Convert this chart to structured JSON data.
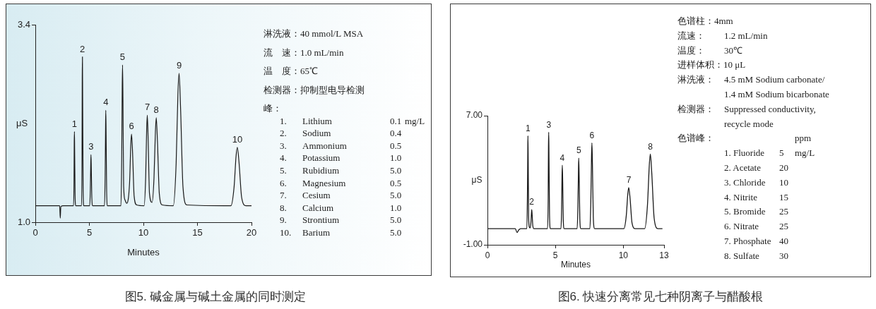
{
  "chart_data": [
    {
      "type": "line",
      "title": "图5. 碱金属与碱土金属的同时测定",
      "xlabel": "Minutes",
      "ylabel": "μS",
      "color": "#1a1a1a",
      "grid": false,
      "xlim": [
        0,
        20
      ],
      "xticks": [
        0,
        5,
        10,
        15,
        20
      ],
      "ylim": [
        1,
        3.4
      ],
      "yticks": [
        {
          "value": 1,
          "label": "1.0"
        },
        3.4
      ],
      "x": [
        0,
        2.25,
        2.31,
        2.36,
        2.6,
        3.53,
        3.58,
        3.6,
        3.62,
        3.64,
        3.68,
        3.74,
        4.27,
        4.32,
        4.34,
        4.36,
        4.38,
        4.42,
        4.48,
        5.03,
        5.09,
        5.13,
        5.15,
        5.18,
        5.23,
        5.31,
        6.4,
        6.46,
        6.5,
        6.52,
        6.55,
        6.6,
        6.68,
        7.92,
        7.99,
        8.04,
        8.07,
        8.11,
        8.17,
        8.3,
        8.45,
        8.72,
        8.83,
        8.9,
        9.0,
        9.14,
        9.38,
        10.06,
        10.21,
        10.3,
        10.36,
        10.44,
        10.56,
        10.8,
        10.98,
        11.11,
        11.19,
        11.3,
        11.47,
        11.75,
        12.76,
        13.03,
        13.19,
        13.3,
        13.44,
        13.66,
        14.02,
        18.09,
        18.39,
        18.57,
        18.69,
        18.85,
        19.09,
        19.49,
        20
      ],
      "values": [
        1.2,
        1.2,
        1.05,
        1.19,
        1.2,
        1.2,
        1.49,
        1.96,
        2.1,
        1.86,
        1.33,
        1.2,
        1.2,
        1.78,
        2.72,
        3.01,
        2.52,
        1.45,
        1.2,
        1.2,
        1.4,
        1.72,
        1.82,
        1.65,
        1.29,
        1.2,
        1.2,
        1.57,
        2.17,
        2.36,
        2.05,
        1.36,
        1.2,
        1.2,
        1.75,
        2.64,
        2.91,
        2.45,
        1.44,
        1.27,
        1.23,
        1.48,
        1.93,
        2.07,
        1.84,
        1.32,
        1.21,
        1.2,
        1.55,
        2.12,
        2.3,
        2.0,
        1.35,
        1.24,
        1.54,
        2.1,
        2.27,
        1.98,
        1.35,
        1.21,
        1.2,
        1.72,
        2.55,
        2.81,
        2.38,
        1.43,
        1.21,
        1.2,
        1.43,
        1.8,
        1.91,
        1.72,
        1.3,
        1.2,
        1.2
      ],
      "annotations": [
        {
          "text": "1",
          "x": 3.62,
          "y": 2.1
        },
        {
          "text": "2",
          "x": 4.36,
          "y": 3.01
        },
        {
          "text": "3",
          "x": 5.15,
          "y": 1.82
        },
        {
          "text": "4",
          "x": 6.52,
          "y": 2.36
        },
        {
          "text": "5",
          "x": 8.07,
          "y": 2.91
        },
        {
          "text": "6",
          "x": 8.9,
          "y": 2.07
        },
        {
          "text": "7",
          "x": 10.36,
          "y": 2.3
        },
        {
          "text": "8",
          "x": 11.19,
          "y": 2.27
        },
        {
          "text": "9",
          "x": 13.3,
          "y": 2.81
        },
        {
          "text": "10",
          "x": 18.69,
          "y": 1.91
        },
        "淋洗液：40 mmol/L MSA",
        "流　速：1.0 mL/min",
        "温　度：65℃",
        "检测器：抑制型电导检测",
        "峰：",
        "\t1.\tLithium\t0.1\tmg/L",
        "\t2.\tSodium\t0.4",
        "\t3.\tAmmonium\t0.5",
        "\t4.\tPotassium\t1.0",
        "\t5.\tRubidium\t5.0",
        "\t6.\tMagnesium\t0.5",
        "\t7.\tCesium\t5.0",
        "\t8.\tCalcium\t1.0",
        "\t9.\tStrontium\t5.0",
        "\t10.\tBarium\t5.0"
      ]
    },
    {
      "type": "line",
      "title": "图6. 快速分离常见七种阴离子与醋酸根",
      "xlabel": "Minutes",
      "ylabel": "μS",
      "color": "#1a1a1a",
      "grid": false,
      "xlim": [
        0,
        13
      ],
      "xticks": [
        0,
        5,
        10,
        13
      ],
      "ylim": [
        -1,
        7
      ],
      "yticks": [
        {
          "value": -1,
          "label": "-1.00"
        },
        {
          "value": 7,
          "label": "7.00"
        }
      ],
      "x": [
        0,
        2.05,
        2.18,
        2.3,
        2.45,
        2.9,
        2.94,
        2.97,
        2.98,
        3.0,
        3.03,
        3.08,
        3.14,
        3.2,
        3.24,
        3.26,
        3.29,
        3.34,
        3.42,
        4.42,
        4.47,
        4.49,
        4.51,
        4.53,
        4.57,
        4.63,
        5.41,
        5.46,
        5.49,
        5.51,
        5.54,
        5.58,
        5.65,
        6.6,
        6.66,
        6.7,
        6.72,
        6.75,
        6.8,
        6.88,
        7.54,
        7.61,
        7.66,
        7.69,
        7.73,
        7.79,
        7.89,
        10.04,
        10.22,
        10.33,
        10.4,
        10.5,
        10.64,
        10.88,
        11.57,
        11.78,
        11.91,
        11.99,
        12.1,
        12.27,
        12.55,
        12.88
      ],
      "values": [
        0,
        0,
        -0.24,
        -0.08,
        0,
        0,
        1.84,
        4.84,
        5.76,
        4.2,
        0.81,
        0.1,
        0.05,
        0.38,
        0.99,
        1.18,
        0.86,
        0.17,
        0,
        0,
        1.91,
        5.02,
        5.98,
        4.37,
        0.84,
        0,
        0,
        1.26,
        3.3,
        3.93,
        2.87,
        0.55,
        0,
        0,
        1.4,
        3.67,
        4.37,
        3.19,
        0.61,
        0,
        0,
        1.7,
        4.46,
        5.31,
        3.88,
        0.74,
        0,
        0,
        0.82,
        2.14,
        2.55,
        1.86,
        0.36,
        0,
        0,
        1.48,
        3.88,
        4.62,
        3.37,
        0.65,
        0,
        0
      ],
      "annotations": [
        {
          "text": "1",
          "x": 2.98,
          "y": 5.76
        },
        {
          "text": "2",
          "x": 3.26,
          "y": 1.18
        },
        {
          "text": "3",
          "x": 4.51,
          "y": 5.98
        },
        {
          "text": "4",
          "x": 5.51,
          "y": 3.93
        },
        {
          "text": "5",
          "x": 6.72,
          "y": 4.37
        },
        {
          "text": "6",
          "x": 7.69,
          "y": 5.31
        },
        {
          "text": "7",
          "x": 10.4,
          "y": 2.55
        },
        {
          "text": "8",
          "x": 11.99,
          "y": 4.62
        },
        "色谱柱：4mm",
        "流速：\t1.2 mL/min",
        "温度：\t30℃",
        "进样体积：10 μL",
        "淋洗液：\t4.5 mM Sodium carbonate/",
        "\t1.4 mM Sodium bicarbonate",
        "检测器：\tSuppressed conductivity,",
        "\trecycle mode",
        "色谱峰：\t\t\tppm",
        "\t1. Fluoride\t5\tmg/L",
        "\t2. Acetate\t20",
        "\t3. Chloride\t10",
        "\t4. Nitrite\t15",
        "\t5. Bromide\t25",
        "\t6. Nitrate\t25",
        "\t7. Phosphate\t40",
        "\t8. Sulfate\t30"
      ]
    }
  ]
}
